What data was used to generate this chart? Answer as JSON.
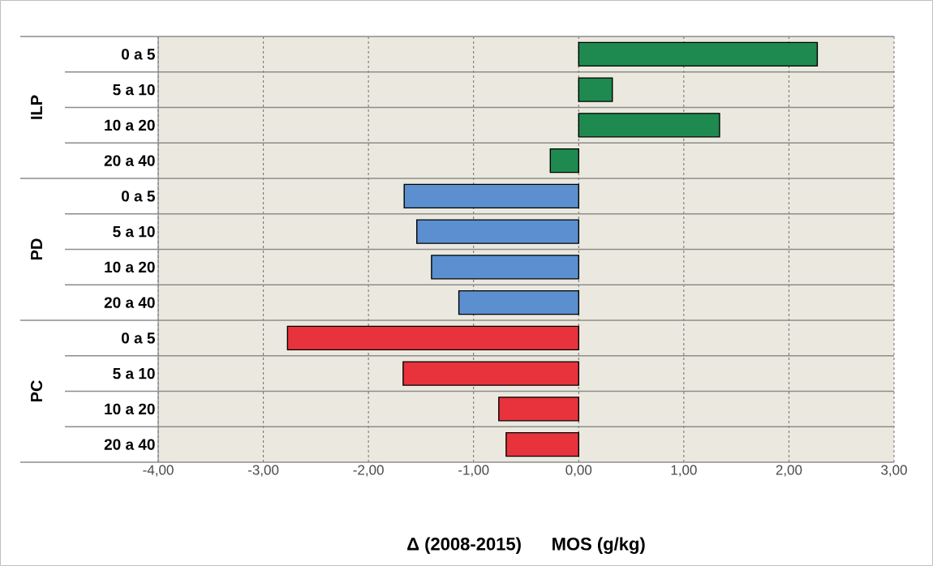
{
  "chart_data": {
    "type": "bar",
    "orientation": "horizontal",
    "xlabel": "Δ (2008-2015)      MOS (g/kg)",
    "categories": [
      "0 a 5",
      "5 a 10",
      "10 a 20",
      "20 a 40",
      "0 a 5",
      "5 a 10",
      "10 a 20",
      "20 a 40",
      "0 a 5",
      "5 a 10",
      "10 a 20",
      "20 a 40"
    ],
    "values": [
      2.27,
      0.32,
      1.34,
      -0.27,
      -1.66,
      -1.54,
      -1.4,
      -1.14,
      -2.77,
      -1.67,
      -0.76,
      -0.69
    ],
    "colors": [
      "#1e8a4f",
      "#1e8a4f",
      "#1e8a4f",
      "#1e8a4f",
      "#5b8fd0",
      "#5b8fd0",
      "#5b8fd0",
      "#5b8fd0",
      "#e8333d",
      "#e8333d",
      "#e8333d",
      "#e8333d"
    ],
    "annotations": [
      "ILP",
      "PD",
      "PC"
    ],
    "xlim": [
      -4,
      3
    ],
    "xticks": [
      {
        "value": -4,
        "label": "-4,00"
      },
      {
        "value": -3,
        "label": "-3,00"
      },
      {
        "value": -2,
        "label": "-2,00"
      },
      {
        "value": -1,
        "label": "-1,00"
      },
      {
        "value": 0,
        "label": "0,00"
      },
      {
        "value": 1,
        "label": "1,00"
      },
      {
        "value": 2,
        "label": "2,00"
      },
      {
        "value": 3,
        "label": "3,00"
      }
    ],
    "grid": "x"
  }
}
